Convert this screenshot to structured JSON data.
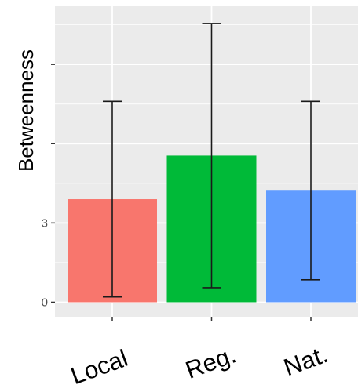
{
  "chart_data": {
    "type": "bar",
    "ylabel": "Betweenness",
    "xlabel": "",
    "categories": [
      "Local",
      "Reg.",
      "Nat."
    ],
    "values": [
      3.9,
      5.55,
      4.25
    ],
    "error_low": [
      0.2,
      0.55,
      0.85
    ],
    "error_high": [
      7.6,
      10.55,
      7.6
    ],
    "y_ticks": [
      0,
      3,
      6,
      9
    ],
    "y_tick_labels": [
      "0",
      "3",
      "",
      ""
    ],
    "ylim": [
      -0.55,
      11.2
    ],
    "grid": true,
    "legend": "none",
    "colors": [
      "#F8766D",
      "#00BA38",
      "#619CFF"
    ],
    "panel_background": "#EBEBEB"
  }
}
